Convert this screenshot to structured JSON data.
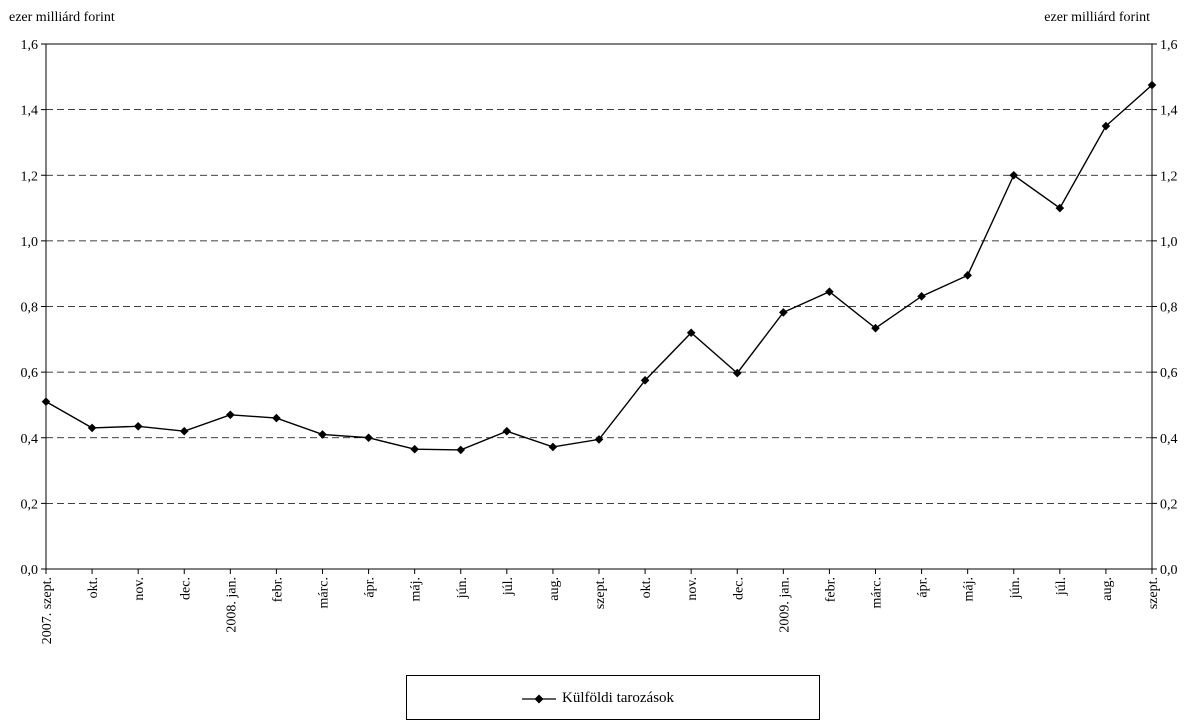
{
  "chart_data": {
    "type": "line",
    "y_unit_left": "ezer milliárd forint",
    "y_unit_right": "ezer milliárd forint",
    "categories": [
      "2007. szept.",
      "okt.",
      "nov.",
      "dec.",
      "2008. jan.",
      "febr.",
      "márc.",
      "ápr.",
      "máj.",
      "jún.",
      "júl.",
      "aug.",
      "szept.",
      "okt.",
      "nov.",
      "dec.",
      "2009. jan.",
      "febr.",
      "márc.",
      "ápr.",
      "máj.",
      "jún.",
      "júl.",
      "aug.",
      "szept."
    ],
    "series": [
      {
        "name": "Külföldi tarozások",
        "color": "#000000",
        "marker": "diamond",
        "values": [
          0.51,
          0.43,
          0.435,
          0.42,
          0.47,
          0.46,
          0.41,
          0.4,
          0.365,
          0.363,
          0.42,
          0.372,
          0.395,
          0.575,
          0.72,
          0.597,
          0.782,
          0.845,
          0.734,
          0.831,
          0.895,
          1.2,
          1.1,
          1.35,
          1.475
        ]
      }
    ],
    "ylim": [
      0,
      1.6
    ],
    "ytick_step": 0.2,
    "ytick_labels": [
      "0,0",
      "0,2",
      "0,4",
      "0,6",
      "0,8",
      "1,0",
      "1,2",
      "1,4",
      "1,6"
    ],
    "grid": "horizontal-dashed",
    "legend_position": "bottom-center"
  }
}
